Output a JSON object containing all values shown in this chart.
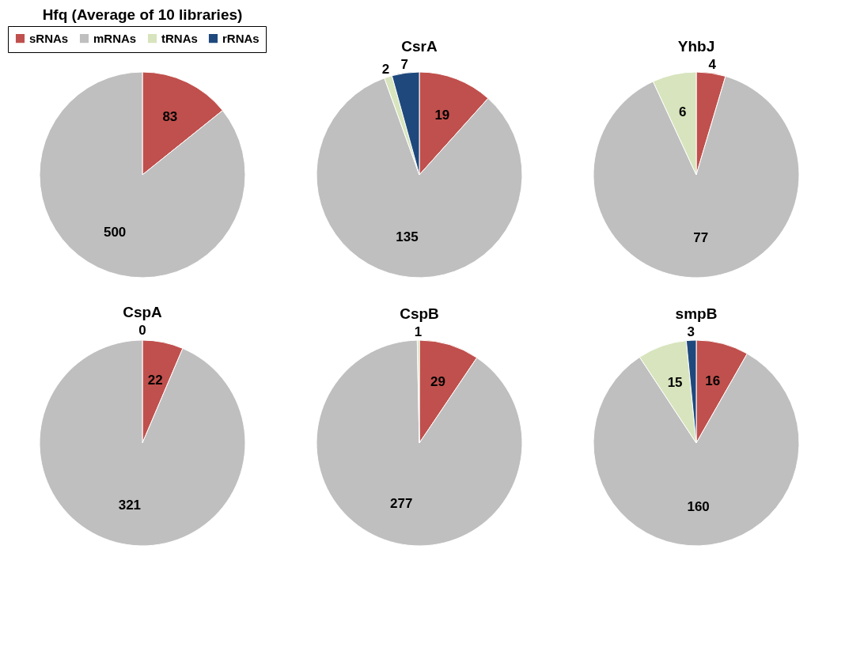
{
  "chart_data": [
    {
      "type": "pie",
      "title": "Hfq (Average of 10 libraries)",
      "categories": [
        "sRNAs",
        "mRNAs",
        "tRNAs",
        "rRNAs"
      ],
      "values": [
        83,
        500,
        null,
        null
      ],
      "colors": [
        "#c0504d",
        "#bfbfbf",
        "#d7e4bd",
        "#1f497d"
      ],
      "data_labels": true,
      "legend": "top"
    },
    {
      "type": "pie",
      "title": "CsrA",
      "categories": [
        null,
        null,
        null,
        null
      ],
      "values": [
        19,
        135,
        2,
        7
      ],
      "colors": [
        "#c0504d",
        "#bfbfbf",
        "#d7e4bd",
        "#1f497d"
      ],
      "data_labels": true
    },
    {
      "type": "pie",
      "title": "YhbJ",
      "categories": [
        null,
        null,
        null
      ],
      "values": [
        4,
        77,
        6
      ],
      "colors": [
        "#c0504d",
        "#bfbfbf",
        "#d7e4bd"
      ],
      "data_labels": true
    },
    {
      "type": "pie",
      "title": "CspA",
      "categories": [
        null,
        null
      ],
      "values": [
        22,
        321
      ],
      "colors": [
        "#c0504d",
        "#bfbfbf"
      ],
      "data_labels": true,
      "annotations": [
        "0"
      ]
    },
    {
      "type": "pie",
      "title": "CspB",
      "categories": [
        null,
        null,
        null
      ],
      "values": [
        29,
        277,
        1
      ],
      "colors": [
        "#c0504d",
        "#bfbfbf",
        "#d7e4bd"
      ],
      "data_labels": true
    },
    {
      "type": "pie",
      "title": "smpB",
      "categories": [
        null,
        null,
        null,
        null
      ],
      "values": [
        16,
        160,
        15,
        3
      ],
      "colors": [
        "#c0504d",
        "#bfbfbf",
        "#d7e4bd",
        "#1f497d"
      ],
      "data_labels": true
    }
  ]
}
